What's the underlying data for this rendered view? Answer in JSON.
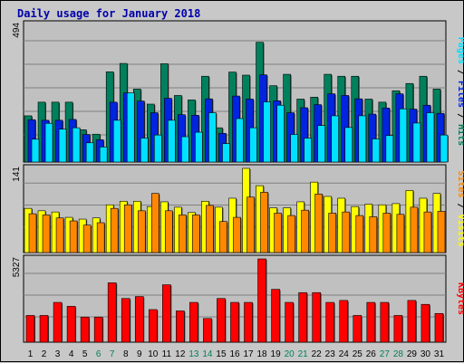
{
  "title": "Daily usage for January 2018",
  "colors": {
    "hits": "#00805c",
    "files": "#0024e0",
    "pages": "#00e0ff",
    "visits": "#ffff00",
    "sites": "#ff8800",
    "kbytes": "#ff0000",
    "weekend_tick": "#00805c",
    "weekday_tick": "#000000"
  },
  "chart_data": [
    {
      "type": "bar",
      "ylim": [
        0,
        494
      ],
      "y_max_label": "494",
      "x": [
        "1",
        "2",
        "3",
        "4",
        "5",
        "6",
        "7",
        "8",
        "9",
        "10",
        "11",
        "12",
        "13",
        "14",
        "15",
        "16",
        "17",
        "18",
        "19",
        "20",
        "21",
        "22",
        "23",
        "24",
        "25",
        "26",
        "27",
        "28",
        "29",
        "30",
        "31"
      ],
      "weekend_days": [
        "6",
        "7",
        "13",
        "14",
        "20",
        "21",
        "27",
        "28"
      ],
      "series": [
        {
          "name": "Hits",
          "key": "hits",
          "values": [
            166,
            215,
            215,
            215,
            116,
            100,
            324,
            354,
            262,
            208,
            353,
            239,
            223,
            308,
            123,
            323,
            312,
            430,
            274,
            315,
            226,
            233,
            315,
            308,
            308,
            226,
            215,
            256,
            282,
            308,
            262
          ]
        },
        {
          "name": "Files",
          "key": "files",
          "values": [
            152,
            150,
            150,
            153,
            99,
            80,
            215,
            248,
            219,
            177,
            229,
            170,
            168,
            227,
            103,
            237,
            226,
            313,
            220,
            177,
            195,
            206,
            245,
            239,
            227,
            172,
            194,
            245,
            190,
            204,
            175
          ]
        },
        {
          "name": "Pages",
          "key": "pages",
          "values": [
            82,
            139,
            118,
            123,
            69,
            54,
            150,
            248,
            86,
            97,
            150,
            91,
            107,
            177,
            66,
            156,
            123,
            216,
            204,
            99,
            86,
            131,
            166,
            124,
            166,
            83,
            95,
            191,
            140,
            177,
            97
          ]
        }
      ],
      "label_parts": [
        {
          "text": "Pages",
          "key": "pages"
        },
        {
          "text": " / ",
          "key": "black"
        },
        {
          "text": "Files",
          "key": "files"
        },
        {
          "text": " / ",
          "key": "black"
        },
        {
          "text": "Hits",
          "key": "hits"
        }
      ]
    },
    {
      "type": "bar",
      "ylim": [
        0,
        141
      ],
      "y_max_label": "141",
      "series": [
        {
          "name": "Visits",
          "key": "visits",
          "values": [
            74,
            70,
            68,
            59,
            56,
            58,
            80,
            86,
            86,
            77,
            85,
            76,
            67,
            86,
            76,
            91,
            141,
            112,
            75,
            75,
            85,
            118,
            94,
            91,
            77,
            81,
            80,
            82,
            104,
            91,
            99
          ]
        },
        {
          "name": "Sites",
          "key": "sites",
          "values": [
            65,
            63,
            58,
            53,
            46,
            50,
            74,
            80,
            70,
            99,
            70,
            63,
            63,
            79,
            52,
            59,
            93,
            101,
            66,
            62,
            71,
            98,
            66,
            68,
            62,
            60,
            66,
            64,
            76,
            68,
            69
          ]
        }
      ],
      "label_parts": [
        {
          "text": "Sites",
          "key": "sites"
        },
        {
          "text": " / ",
          "key": "black"
        },
        {
          "text": "Visits",
          "key": "visits"
        }
      ]
    },
    {
      "type": "bar",
      "ylim": [
        0,
        5327
      ],
      "y_max_label": "5327",
      "series": [
        {
          "name": "KBytes",
          "key": "kbytes",
          "values": [
            1710,
            1710,
            2545,
            2293,
            1606,
            1606,
            3797,
            2795,
            2920,
            2085,
            3673,
            2002,
            2545,
            1517,
            2795,
            2545,
            2545,
            5327,
            3380,
            2545,
            3171,
            3171,
            2545,
            2670,
            1710,
            2545,
            2545,
            1710,
            2670,
            2420,
            1837
          ]
        }
      ],
      "label_parts": [
        {
          "text": "KBytes",
          "key": "kbytes"
        }
      ]
    }
  ]
}
